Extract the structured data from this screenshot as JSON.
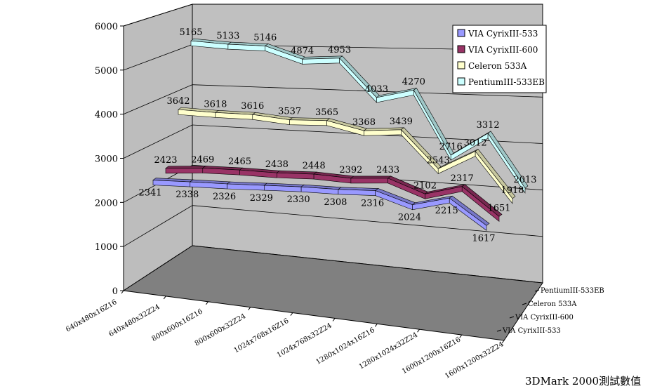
{
  "chart_data": {
    "type": "line",
    "title": "",
    "caption": "3DMark 2000測試數值",
    "ylim": [
      0,
      6000
    ],
    "y_ticks": [
      0,
      1000,
      2000,
      3000,
      4000,
      5000,
      6000
    ],
    "categories": [
      "640x480x16Z16",
      "640x480x32Z24",
      "800x600x16Z16",
      "800x600x32Z24",
      "1024x768x16Z16",
      "1024x768x32Z24",
      "1280x1024x16Z16",
      "1280x1024x32Z24",
      "1600x1200x16Z16",
      "1600x1200x32Z24"
    ],
    "series": [
      {
        "name": "VIA CyrixIII-533",
        "color": "#9999ff",
        "values": [
          2341,
          2338,
          2326,
          2329,
          2330,
          2308,
          2316,
          2024,
          2215,
          1617
        ]
      },
      {
        "name": "VIA CyrixIII-600",
        "color": "#993366",
        "values": [
          2423,
          2469,
          2465,
          2438,
          2448,
          2392,
          2433,
          2102,
          2317,
          1651
        ]
      },
      {
        "name": "Celeron 533A",
        "color": "#ffffcc",
        "values": [
          3642,
          3618,
          3616,
          3537,
          3565,
          3368,
          3439,
          2543,
          3012,
          1918
        ]
      },
      {
        "name": "PentiumIII-533EB",
        "color": "#ccffff",
        "values": [
          5165,
          5133,
          5146,
          4874,
          4953,
          4033,
          4270,
          2716,
          3312,
          2013
        ]
      }
    ],
    "depth_labels": [
      "PentiumIII-533EB",
      "Celeron 533A",
      "VIA CyrixIII-600",
      "VIA CyrixIII-533"
    ],
    "legend_position": "top-right"
  }
}
